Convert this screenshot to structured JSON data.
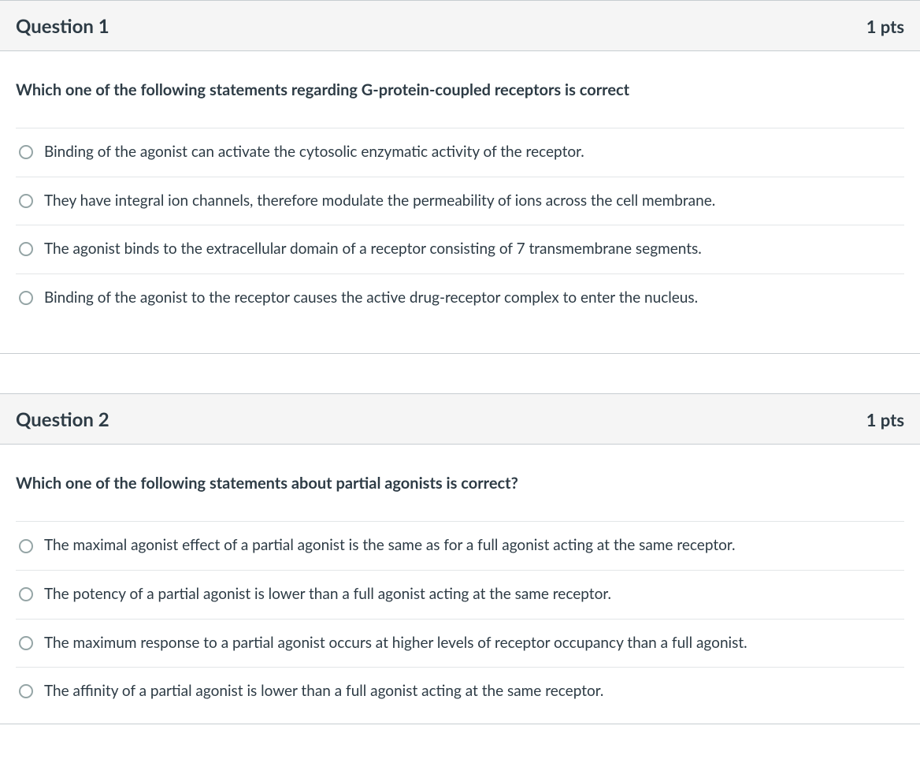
{
  "questions": [
    {
      "title": "Question 1",
      "points": "1 pts",
      "stem": "Which one of the following statements regarding G-protein-coupled receptors is correct",
      "options": [
        "Binding of the agonist can activate the cytosolic enzymatic activity of the receptor.",
        "They have integral ion channels, therefore modulate the permeability of ions across the cell membrane.",
        "The agonist binds to the extracellular domain of a receptor consisting of 7 transmembrane segments.",
        "Binding of the agonist to the receptor causes the active drug-receptor complex to enter the nucleus."
      ]
    },
    {
      "title": "Question 2",
      "points": "1 pts",
      "stem": "Which one of the following statements about partial agonists is correct?",
      "options": [
        "The maximal agonist effect of a partial agonist is the same as for a full agonist acting at the same receptor.",
        "The potency of a partial agonist is lower than a full agonist acting at the same receptor.",
        "The maximum response to a partial agonist occurs at higher levels of receptor occupancy than a full agonist.",
        "The affinity of a partial agonist is lower than a full agonist acting at the same receptor."
      ]
    }
  ]
}
